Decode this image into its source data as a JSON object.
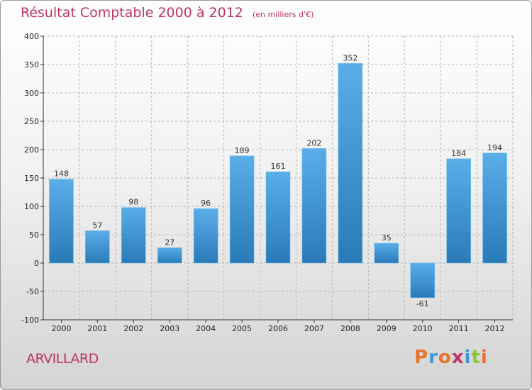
{
  "chart_data": {
    "type": "bar",
    "title": "Résultat Comptable 2000 à 2012",
    "unit": "(en milliers d'€)",
    "xlabel": "",
    "ylabel": "",
    "categories": [
      "2000",
      "2001",
      "2002",
      "2003",
      "2004",
      "2005",
      "2006",
      "2007",
      "2008",
      "2009",
      "2010",
      "2011",
      "2012"
    ],
    "values": [
      148,
      57,
      98,
      27,
      96,
      189,
      161,
      202,
      352,
      35,
      -61,
      184,
      194
    ],
    "data_labels": [
      "148",
      "57",
      "98",
      "27",
      "96",
      "189",
      "161",
      "202",
      "352",
      "35",
      "-61",
      "184",
      "194"
    ],
    "ylim": [
      -100,
      400
    ],
    "yticks": [
      -100,
      -50,
      0,
      50,
      100,
      150,
      200,
      250,
      300,
      350,
      400
    ],
    "grid": "horizontal-dashed",
    "bar_color_top": "#5aaee8",
    "bar_color_bottom": "#2a7ab8"
  },
  "footer": {
    "commune": "ARVILLARD",
    "logo_text": "Proxiti",
    "logo_colors": [
      "#e8732a",
      "#3a9ad9",
      "#e8732a",
      "#c0355f",
      "#3a9ad9",
      "#8cc63f",
      "#e8732a"
    ]
  },
  "colors": {
    "title": "#c0355f",
    "grid": "#b4b4b4",
    "axis": "#333333"
  }
}
